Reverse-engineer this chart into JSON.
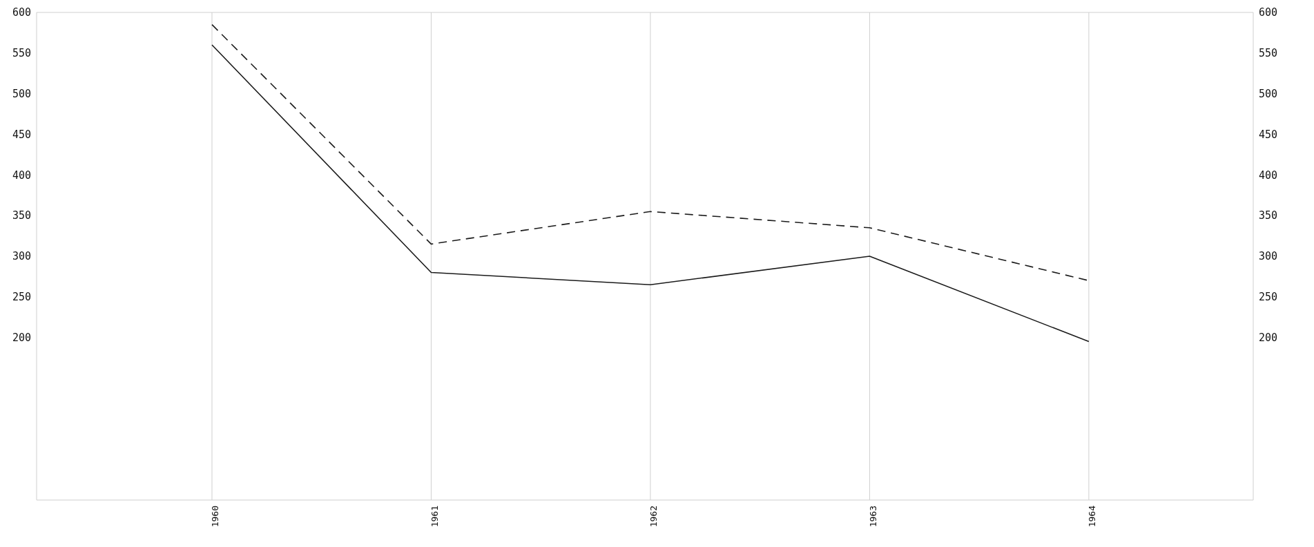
{
  "chart_data": {
    "type": "line",
    "categories": [
      "1960",
      "1961",
      "1962",
      "1963",
      "1964"
    ],
    "series": [
      {
        "color": "#1a1a1a",
        "line_style": "solid",
        "values": [
          560,
          280,
          265,
          300,
          195
        ]
      },
      {
        "color": "#1a1a1a",
        "line_style": "dashed",
        "values": [
          585,
          315,
          355,
          335,
          270
        ]
      }
    ],
    "ylim": [
      0,
      600
    ],
    "yticks": [
      200,
      250,
      300,
      350,
      400,
      450,
      500,
      550,
      600
    ],
    "y2lim": [
      0,
      600
    ],
    "y2ticks": [
      200,
      250,
      300,
      350,
      400,
      450,
      500,
      550,
      600
    ],
    "grid": true,
    "marker": "none"
  }
}
